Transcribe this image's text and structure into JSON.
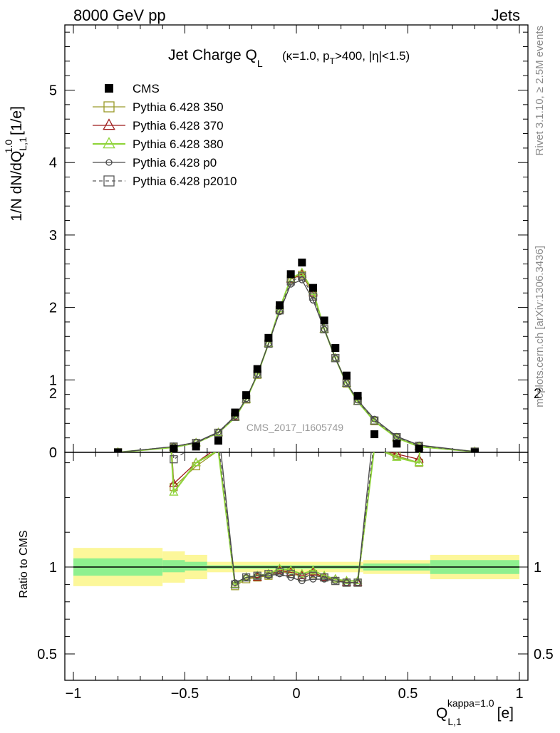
{
  "header": {
    "left_label": "8000 GeV pp",
    "right_label": "Jets"
  },
  "side_labels": {
    "rivet": "Rivet 3.1.10, ≥ 2.5M events",
    "mcplots": "mcplots.cern.ch [arXiv:1306.3436]"
  },
  "colors": {
    "cms": "#000000",
    "p350": "#9a9a2a",
    "p370": "#9e1a1a",
    "p380": "#8fd43a",
    "p0": "#4a4a4a",
    "p2010": "#5a5a5a",
    "band_inner": "#8ff08f",
    "band_outer": "#fcf79a"
  },
  "chart_data": [
    {
      "type": "line",
      "title": "Jet Charge Q_L (κ=1.0, p_T>400, |η|<1.5)",
      "watermark": "CMS_2017_I1605749",
      "ylabel": "1/N dN/dQ^{1.0}_{L,1} [1/e]",
      "xlabel": "Q^{kappa=1.0}_{L,1} [e]",
      "xlim": [
        -1.0,
        1.0
      ],
      "ylim": [
        0,
        5.9
      ],
      "yticks": [
        "0",
        "1",
        "2",
        "3",
        "4",
        "5"
      ],
      "legend_position": "top-left",
      "x": [
        -0.8,
        -0.55,
        -0.45,
        -0.35,
        -0.275,
        -0.225,
        -0.175,
        -0.125,
        -0.075,
        -0.025,
        0.025,
        0.075,
        0.125,
        0.175,
        0.225,
        0.275,
        0.35,
        0.45,
        0.55,
        0.8
      ],
      "series": [
        {
          "name": "CMS",
          "marker": "filled-square",
          "values": [
            0.0,
            0.05,
            0.08,
            0.16,
            0.55,
            0.79,
            1.15,
            1.58,
            2.03,
            2.46,
            2.62,
            2.27,
            1.82,
            1.44,
            1.06,
            0.78,
            0.25,
            0.12,
            0.05,
            0.0
          ]
        },
        {
          "name": "Pythia 6.428 350",
          "marker": "open-square",
          "values": [
            0.0,
            0.07,
            0.13,
            0.27,
            0.49,
            0.73,
            1.07,
            1.5,
            1.97,
            2.39,
            2.45,
            2.2,
            1.7,
            1.3,
            0.95,
            0.71,
            0.43,
            0.2,
            0.08,
            0.01
          ]
        },
        {
          "name": "Pythia 6.428 370",
          "marker": "open-triangle",
          "values": [
            0.0,
            0.07,
            0.13,
            0.27,
            0.49,
            0.73,
            1.07,
            1.5,
            1.98,
            2.39,
            2.46,
            2.2,
            1.7,
            1.3,
            0.95,
            0.7,
            0.43,
            0.2,
            0.08,
            0.01
          ]
        },
        {
          "name": "Pythia 6.428 380",
          "marker": "open-triangle",
          "values": [
            0.0,
            0.07,
            0.13,
            0.27,
            0.48,
            0.73,
            1.07,
            1.5,
            1.98,
            2.4,
            2.48,
            2.22,
            1.7,
            1.3,
            0.95,
            0.7,
            0.43,
            0.2,
            0.08,
            0.01
          ]
        },
        {
          "name": "Pythia 6.428 p0",
          "marker": "open-circle",
          "values": [
            0.0,
            0.08,
            0.14,
            0.28,
            0.5,
            0.74,
            1.08,
            1.5,
            1.94,
            2.32,
            2.38,
            2.1,
            1.7,
            1.3,
            0.96,
            0.72,
            0.46,
            0.22,
            0.1,
            0.01
          ]
        },
        {
          "name": "Pythia 6.428 p2010",
          "marker": "open-square",
          "dashed": true,
          "values": [
            0.0,
            0.08,
            0.13,
            0.27,
            0.49,
            0.74,
            1.08,
            1.5,
            1.96,
            2.36,
            2.43,
            2.15,
            1.7,
            1.3,
            0.96,
            0.71,
            0.44,
            0.21,
            0.09,
            0.01
          ]
        }
      ]
    },
    {
      "type": "line",
      "title": "",
      "ylabel": "Ratio to CMS",
      "xlabel": "Q^{kappa=1.0}_{L,1} [e]",
      "xlim": [
        -1.0,
        1.0
      ],
      "ylim": [
        0.33,
        2.33
      ],
      "yticks": [
        "0.5",
        "1",
        "2"
      ],
      "xticks": [
        "−1",
        "−0.5",
        "0",
        "0.5",
        "1"
      ],
      "reference_line": 1,
      "x": [
        -0.55,
        -0.45,
        -0.35,
        -0.275,
        -0.225,
        -0.175,
        -0.125,
        -0.075,
        -0.025,
        0.025,
        0.075,
        0.125,
        0.175,
        0.225,
        0.275,
        0.35,
        0.45,
        0.55
      ],
      "uncertainty_bands": [
        {
          "x_from": -1.0,
          "x_to": -0.6,
          "inner": [
            0.95,
            1.05
          ],
          "outer": [
            0.89,
            1.11
          ]
        },
        {
          "x_from": -0.6,
          "x_to": -0.5,
          "inner": [
            0.97,
            1.04
          ],
          "outer": [
            0.91,
            1.09
          ]
        },
        {
          "x_from": -0.5,
          "x_to": -0.4,
          "inner": [
            0.98,
            1.03
          ],
          "outer": [
            0.93,
            1.07
          ]
        },
        {
          "x_from": -0.4,
          "x_to": 0.3,
          "inner": [
            0.99,
            1.01
          ],
          "outer": [
            0.97,
            1.03
          ]
        },
        {
          "x_from": 0.3,
          "x_to": 0.6,
          "inner": [
            0.98,
            1.02
          ],
          "outer": [
            0.96,
            1.04
          ]
        },
        {
          "x_from": 0.6,
          "x_to": 1.0,
          "inner": [
            0.96,
            1.04
          ],
          "outer": [
            0.93,
            1.07
          ]
        }
      ],
      "series": [
        {
          "name": "Pythia 6.428 350",
          "values": [
            1.46,
            1.58,
            1.67,
            0.89,
            0.93,
            0.94,
            0.95,
            0.97,
            0.97,
            0.94,
            0.96,
            0.94,
            0.92,
            0.91,
            0.91,
            1.69,
            1.64,
            1.6
          ]
        },
        {
          "name": "Pythia 6.428 370",
          "values": [
            1.48,
            1.6,
            1.69,
            0.9,
            0.94,
            0.94,
            0.96,
            0.98,
            0.97,
            0.95,
            0.97,
            0.94,
            0.93,
            0.91,
            0.91,
            1.69,
            1.65,
            1.62
          ]
        },
        {
          "name": "Pythia 6.428 380",
          "values": [
            1.43,
            1.6,
            1.67,
            0.9,
            0.94,
            0.95,
            0.96,
            0.99,
            0.98,
            0.96,
            0.98,
            0.95,
            0.93,
            0.92,
            0.92,
            1.69,
            1.63,
            1.6
          ]
        },
        {
          "name": "Pythia 6.428 p0",
          "values": [
            1.73,
            1.78,
            1.8,
            0.91,
            0.94,
            0.95,
            0.95,
            0.96,
            0.94,
            0.92,
            0.93,
            0.93,
            0.92,
            0.91,
            0.91,
            1.84,
            1.84,
            1.92
          ]
        },
        {
          "name": "Pythia 6.428 p2010",
          "values": [
            1.62,
            1.7,
            1.72,
            0.9,
            0.94,
            0.95,
            0.96,
            0.97,
            0.96,
            0.94,
            0.95,
            0.94,
            0.92,
            0.91,
            0.91,
            1.74,
            1.75,
            1.78
          ]
        }
      ]
    }
  ]
}
